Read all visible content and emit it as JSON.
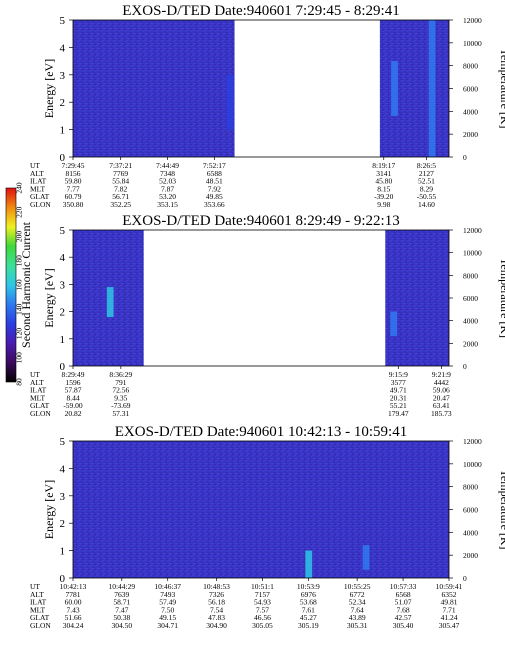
{
  "colorbar": {
    "label": "Second Harmonic Current",
    "ticks": [
      "80",
      "100",
      "120",
      "140",
      "160",
      "180",
      "200",
      "220",
      "240"
    ],
    "range": [
      80,
      240
    ],
    "stops": [
      "#000000",
      "#3b0a5c",
      "#4a1bb0",
      "#2a3fe0",
      "#2f7af0",
      "#2fc7e6",
      "#3ddf9a",
      "#3fd83a",
      "#f0f020",
      "#f08a10",
      "#e01010"
    ]
  },
  "axis_labels": {
    "energy": "Energy [eV]",
    "temperature": "Temperature [K]"
  },
  "energy_ticks": [
    "0",
    "1",
    "2",
    "3",
    "4",
    "5"
  ],
  "temperature_ticks": [
    "0",
    "2000",
    "4000",
    "6000",
    "8000",
    "10000",
    "12000"
  ],
  "orbit_row_labels": [
    "UT",
    "ALT",
    "ILAT",
    "MLT",
    "GLAT",
    "GLON"
  ],
  "chart_data": [
    {
      "type": "heatmap",
      "title": "EXOS-D/TED   Date:940601  7:29:45 - 8:29:41",
      "xlabel": "",
      "ylabel": "Energy [eV]",
      "ylim": [
        0,
        5
      ],
      "y2label": "Temperature [K]",
      "y2lim": [
        0,
        12000
      ],
      "x_range": [
        "7:29:45",
        "8:29:41"
      ],
      "data_segments": [
        [
          "7:29:45",
          "7:55:30"
        ],
        [
          "8:18:40",
          "8:29:41"
        ]
      ],
      "features": [
        {
          "time": "7:54:45",
          "energy": [
            1.0,
            3.0
          ],
          "level": 130
        },
        {
          "time": "8:21:00",
          "energy": [
            1.5,
            3.5
          ],
          "level": 145
        },
        {
          "time": "8:27:00",
          "energy": [
            0.0,
            5.0
          ],
          "level": 140
        }
      ],
      "orbit_table": [
        {
          "UT": "7:29:45",
          "ALT": "8156",
          "ILAT": "59.80",
          "MLT": "7.77",
          "GLAT": "60.79",
          "GLON": "350.80"
        },
        {
          "UT": "7:37:21",
          "ALT": "7769",
          "ILAT": "55.84",
          "MLT": "7.82",
          "GLAT": "56.71",
          "GLON": "352.25"
        },
        {
          "UT": "7:44:49",
          "ALT": "7348",
          "ILAT": "52.03",
          "MLT": "7.87",
          "GLAT": "53.20",
          "GLON": "353.15"
        },
        {
          "UT": "7:52:17",
          "ALT": "6588",
          "ILAT": "48.51",
          "MLT": "7.92",
          "GLAT": "49.85",
          "GLON": "353.66"
        },
        {
          "UT": "8:19:17",
          "ALT": "3141",
          "ILAT": "45.80",
          "MLT": "8.15",
          "GLAT": "-39.20",
          "GLON": "9.98"
        },
        {
          "UT": "8:26:5",
          "ALT": "2127",
          "ILAT": "52.51",
          "MLT": "8.29",
          "GLAT": "-50.55",
          "GLON": "14.60"
        }
      ]
    },
    {
      "type": "heatmap",
      "title": "EXOS-D/TED   Date:940601  8:29:49 - 9:22:13",
      "xlabel": "",
      "ylabel": "Energy [eV]",
      "ylim": [
        0,
        5
      ],
      "y2label": "Temperature [K]",
      "y2lim": [
        0,
        12000
      ],
      "x_range": [
        "8:29:49",
        "9:22:13"
      ],
      "data_segments": [
        [
          "8:29:49",
          "8:39:40"
        ],
        [
          "9:13:20",
          "9:22:13"
        ]
      ],
      "features": [
        {
          "time": "8:35:00",
          "energy": [
            1.8,
            2.9
          ],
          "level": 165
        },
        {
          "time": "9:14:30",
          "energy": [
            1.1,
            2.0
          ],
          "level": 150
        }
      ],
      "orbit_table": [
        {
          "UT": "8:29:49",
          "ALT": "1596",
          "ILAT": "57.87",
          "MLT": "8.44",
          "GLAT": "-59.00",
          "GLON": "20.82"
        },
        {
          "UT": "8:36:29",
          "ALT": "791",
          "ILAT": "72.56",
          "MLT": "9.35",
          "GLAT": "-73.69",
          "GLON": "57.31"
        },
        {
          "UT": "9:15:9",
          "ALT": "3577",
          "ILAT": "49.71",
          "MLT": "20.31",
          "GLAT": "55.21",
          "GLON": "179.47"
        },
        {
          "UT": "9:21:9",
          "ALT": "4442",
          "ILAT": "59.06",
          "MLT": "20.47",
          "GLAT": "63.41",
          "GLON": "185.73"
        }
      ]
    },
    {
      "type": "heatmap",
      "title": "EXOS-D/TED   Date:940601  10:42:13 - 10:59:41",
      "xlabel": "",
      "ylabel": "Energy [eV]",
      "ylim": [
        0,
        5
      ],
      "y2label": "Temperature [K]",
      "y2lim": [
        0,
        12000
      ],
      "x_range": [
        "10:42:13",
        "10:59:41"
      ],
      "data_segments": [
        [
          "10:42:13",
          "10:59:41"
        ]
      ],
      "features": [
        {
          "time": "10:53:10",
          "energy": [
            0.0,
            1.0
          ],
          "level": 160
        },
        {
          "time": "10:55:50",
          "energy": [
            0.3,
            1.2
          ],
          "level": 140
        }
      ],
      "orbit_table": [
        {
          "UT": "10:42:13",
          "ALT": "7781",
          "ILAT": "60.00",
          "MLT": "7.43",
          "GLAT": "51.66",
          "GLON": "304.24"
        },
        {
          "UT": "10:44:29",
          "ALT": "7639",
          "ILAT": "58.71",
          "MLT": "7.47",
          "GLAT": "50.38",
          "GLON": "304.50"
        },
        {
          "UT": "10:46:37",
          "ALT": "7493",
          "ILAT": "57.49",
          "MLT": "7.50",
          "GLAT": "49.15",
          "GLON": "304.71"
        },
        {
          "UT": "10:48:53",
          "ALT": "7326",
          "ILAT": "56.18",
          "MLT": "7.54",
          "GLAT": "47.83",
          "GLON": "304.90"
        },
        {
          "UT": "10:51:1",
          "ALT": "7157",
          "ILAT": "54.93",
          "MLT": "7.57",
          "GLAT": "46.56",
          "GLON": "305.05"
        },
        {
          "UT": "10:53:9",
          "ALT": "6976",
          "ILAT": "53.68",
          "MLT": "7.61",
          "GLAT": "45.27",
          "GLON": "305.19"
        },
        {
          "UT": "10:55:25",
          "ALT": "6772",
          "ILAT": "52.34",
          "MLT": "7.64",
          "GLAT": "43.89",
          "GLON": "305.31"
        },
        {
          "UT": "10:57:33",
          "ALT": "6568",
          "ILAT": "51.07",
          "MLT": "7.68",
          "GLAT": "42.57",
          "GLON": "305.40"
        },
        {
          "UT": "10:59:41",
          "ALT": "6352",
          "ILAT": "49.81",
          "MLT": "7.71",
          "GLAT": "41.24",
          "GLON": "305.47"
        }
      ]
    }
  ]
}
